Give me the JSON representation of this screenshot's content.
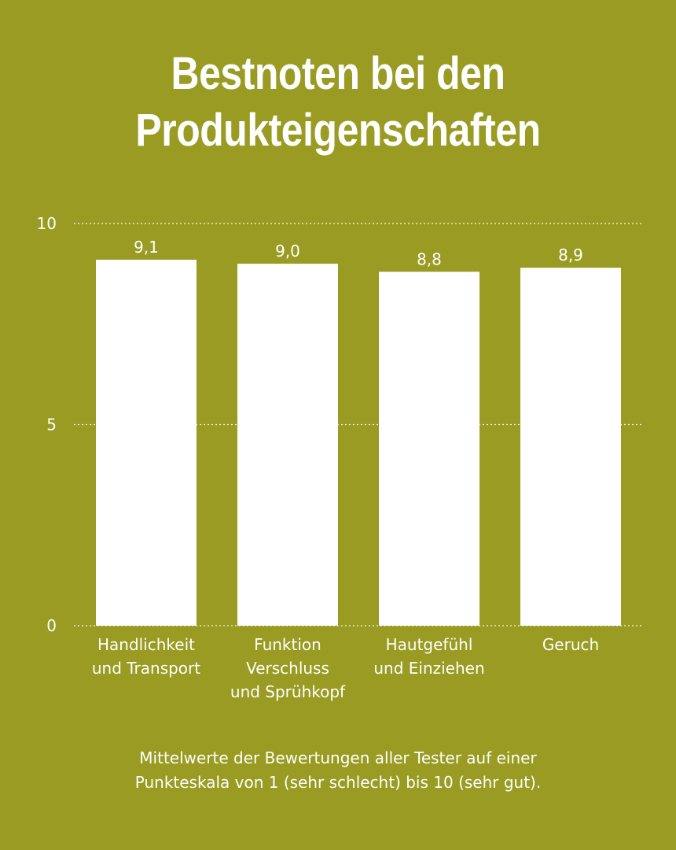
{
  "title_lines": [
    "Bestnoten bei den",
    "Produkteigenschaften"
  ],
  "footnote_lines": [
    "Mittelwerte der Bewertungen aller Tester auf einer",
    "Punkteskala von 1 (sehr schlecht) bis 10 (sehr gut)."
  ],
  "colors": {
    "background": "#9a9b22",
    "bar": "#ffffff",
    "text": "#ffffff",
    "grid": "#ffffff"
  },
  "chart_data": {
    "type": "bar",
    "title": "Bestnoten bei den Produkteigenschaften",
    "categories": [
      [
        "Handlichkeit",
        "und Transport"
      ],
      [
        "Funktion",
        "Verschluss",
        "und Sprühkopf"
      ],
      [
        "Hautgefühl",
        "und Einziehen"
      ],
      [
        "Geruch"
      ]
    ],
    "values": [
      9.1,
      9.0,
      8.8,
      8.9
    ],
    "value_labels": [
      "9,1",
      "9,0",
      "8,8",
      "8,9"
    ],
    "yticks": [
      "0",
      "5",
      "10"
    ],
    "ylim": [
      0,
      10
    ],
    "grid": "dotted horizontal",
    "legend": "none"
  }
}
